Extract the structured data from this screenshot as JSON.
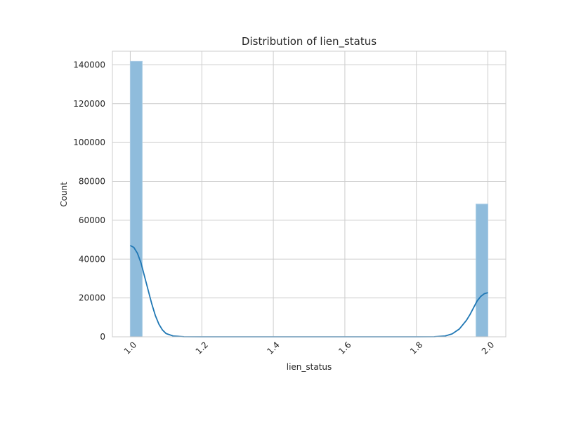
{
  "chart_data": {
    "type": "bar",
    "title": "Distribution of lien_status",
    "xlabel": "lien_status",
    "ylabel": "Count",
    "xlim": [
      0.95,
      2.05
    ],
    "ylim": [
      0,
      147000
    ],
    "xticks": [
      1.0,
      1.2,
      1.4,
      1.6,
      1.8,
      2.0
    ],
    "xtick_labels": [
      "1.0",
      "1.2",
      "1.4",
      "1.6",
      "1.8",
      "2.0"
    ],
    "yticks": [
      0,
      20000,
      40000,
      60000,
      80000,
      100000,
      120000,
      140000
    ],
    "ytick_labels": [
      "0",
      "20000",
      "40000",
      "60000",
      "80000",
      "100000",
      "120000",
      "140000"
    ],
    "grid": true,
    "bins": [
      {
        "x0": 1.0,
        "x1": 1.0333,
        "count": 141800
      },
      {
        "x0": 1.9667,
        "x1": 2.0,
        "count": 68300
      }
    ],
    "kde": {
      "x": [
        1.0,
        1.01,
        1.02,
        1.03,
        1.04,
        1.05,
        1.06,
        1.07,
        1.08,
        1.09,
        1.1,
        1.12,
        1.15,
        1.2,
        1.4,
        1.6,
        1.8,
        1.85,
        1.88,
        1.9,
        1.92,
        1.94,
        1.95,
        1.96,
        1.97,
        1.98,
        1.99,
        2.0
      ],
      "y": [
        47000,
        46000,
        43000,
        38000,
        31000,
        24000,
        17000,
        11000,
        6500,
        3500,
        1700,
        400,
        50,
        0,
        0,
        0,
        0,
        50,
        400,
        1500,
        4000,
        8500,
        11500,
        15000,
        18500,
        20800,
        22200,
        22700
      ]
    },
    "colors": {
      "bar_fill": "#8fbcdc",
      "bar_edge": "#a9cbe5",
      "kde_line": "#1f77b4"
    }
  }
}
